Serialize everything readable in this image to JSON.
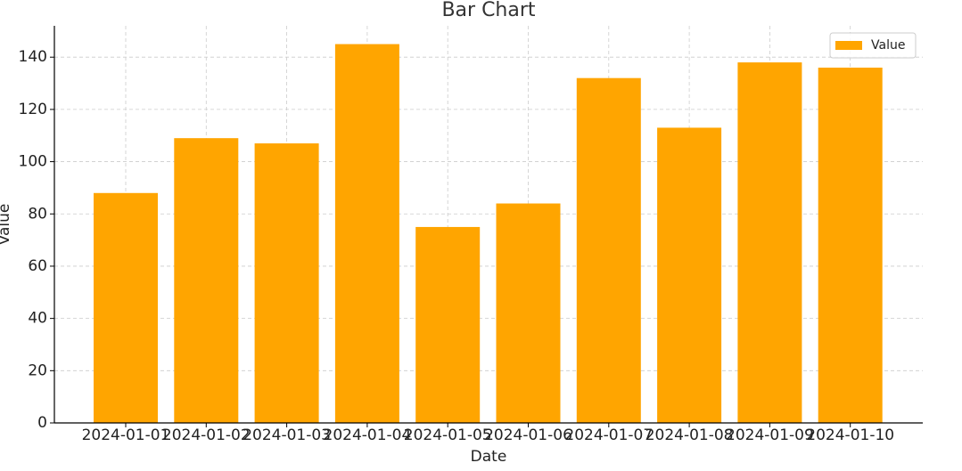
{
  "chart_data": {
    "type": "bar",
    "title": "Bar Chart",
    "x_label": "Date",
    "y_label": "Value",
    "categories": [
      "2024-01-01",
      "2024-01-02",
      "2024-01-03",
      "2024-01-04",
      "2024-01-05",
      "2024-01-06",
      "2024-01-07",
      "2024-01-08",
      "2024-01-09",
      "2024-01-10"
    ],
    "series": [
      {
        "name": "Value",
        "color": "#ffa500",
        "values": [
          88,
          109,
          107,
          145,
          75,
          84,
          132,
          113,
          138,
          136
        ]
      }
    ],
    "ylim": [
      0,
      152
    ],
    "yticks": [
      0,
      20,
      40,
      60,
      80,
      100,
      120,
      140
    ],
    "grid": true,
    "legend": "upper right"
  }
}
